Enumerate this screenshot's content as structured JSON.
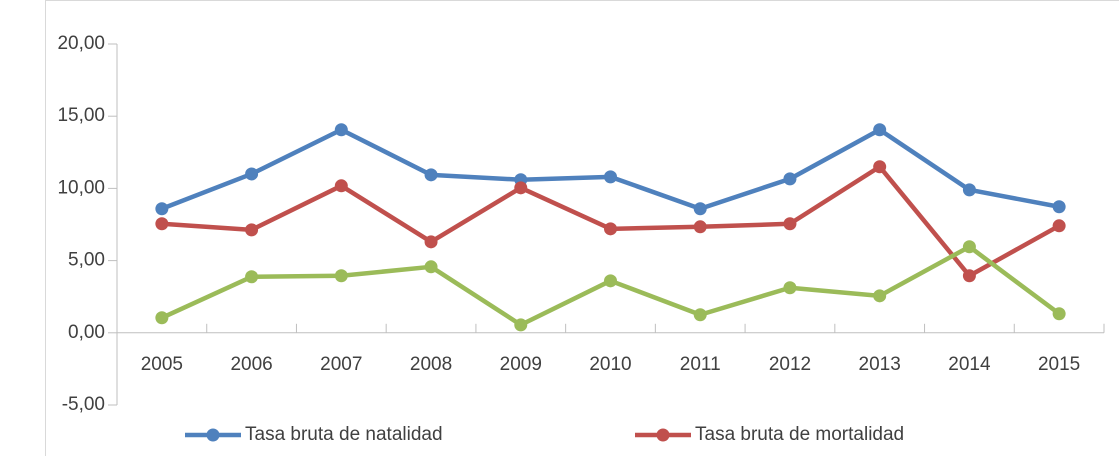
{
  "chart_data": {
    "type": "line",
    "categories": [
      "2005",
      "2006",
      "2007",
      "2008",
      "2009",
      "2010",
      "2011",
      "2012",
      "2013",
      "2014",
      "2015"
    ],
    "series": [
      {
        "name": "Tasa bruta de natalidad",
        "color": "#4f81bd",
        "values": [
          8.59,
          11.0,
          14.06,
          10.94,
          10.6,
          10.8,
          8.59,
          10.66,
          14.06,
          9.9,
          8.73
        ]
      },
      {
        "name": "Tasa bruta de mortalidad",
        "color": "#c0504d",
        "values": [
          7.55,
          7.13,
          10.18,
          6.3,
          10.04,
          7.2,
          7.34,
          7.55,
          11.5,
          3.95,
          7.41
        ]
      },
      {
        "color": "#9bbb59",
        "values": [
          1.04,
          3.88,
          3.95,
          4.57,
          0.55,
          3.6,
          1.25,
          3.12,
          2.56,
          5.96,
          1.32
        ]
      }
    ],
    "ylim": [
      -5,
      20
    ],
    "yticks": [
      {
        "value": -5,
        "label": "-5,00"
      },
      {
        "value": 0,
        "label": "0,00"
      },
      {
        "value": 5,
        "label": "5,00"
      },
      {
        "value": 10,
        "label": "10,00"
      },
      {
        "value": 15,
        "label": "15,00"
      },
      {
        "value": 20,
        "label": "20,00"
      }
    ],
    "grid": false,
    "legend": "bottom"
  }
}
